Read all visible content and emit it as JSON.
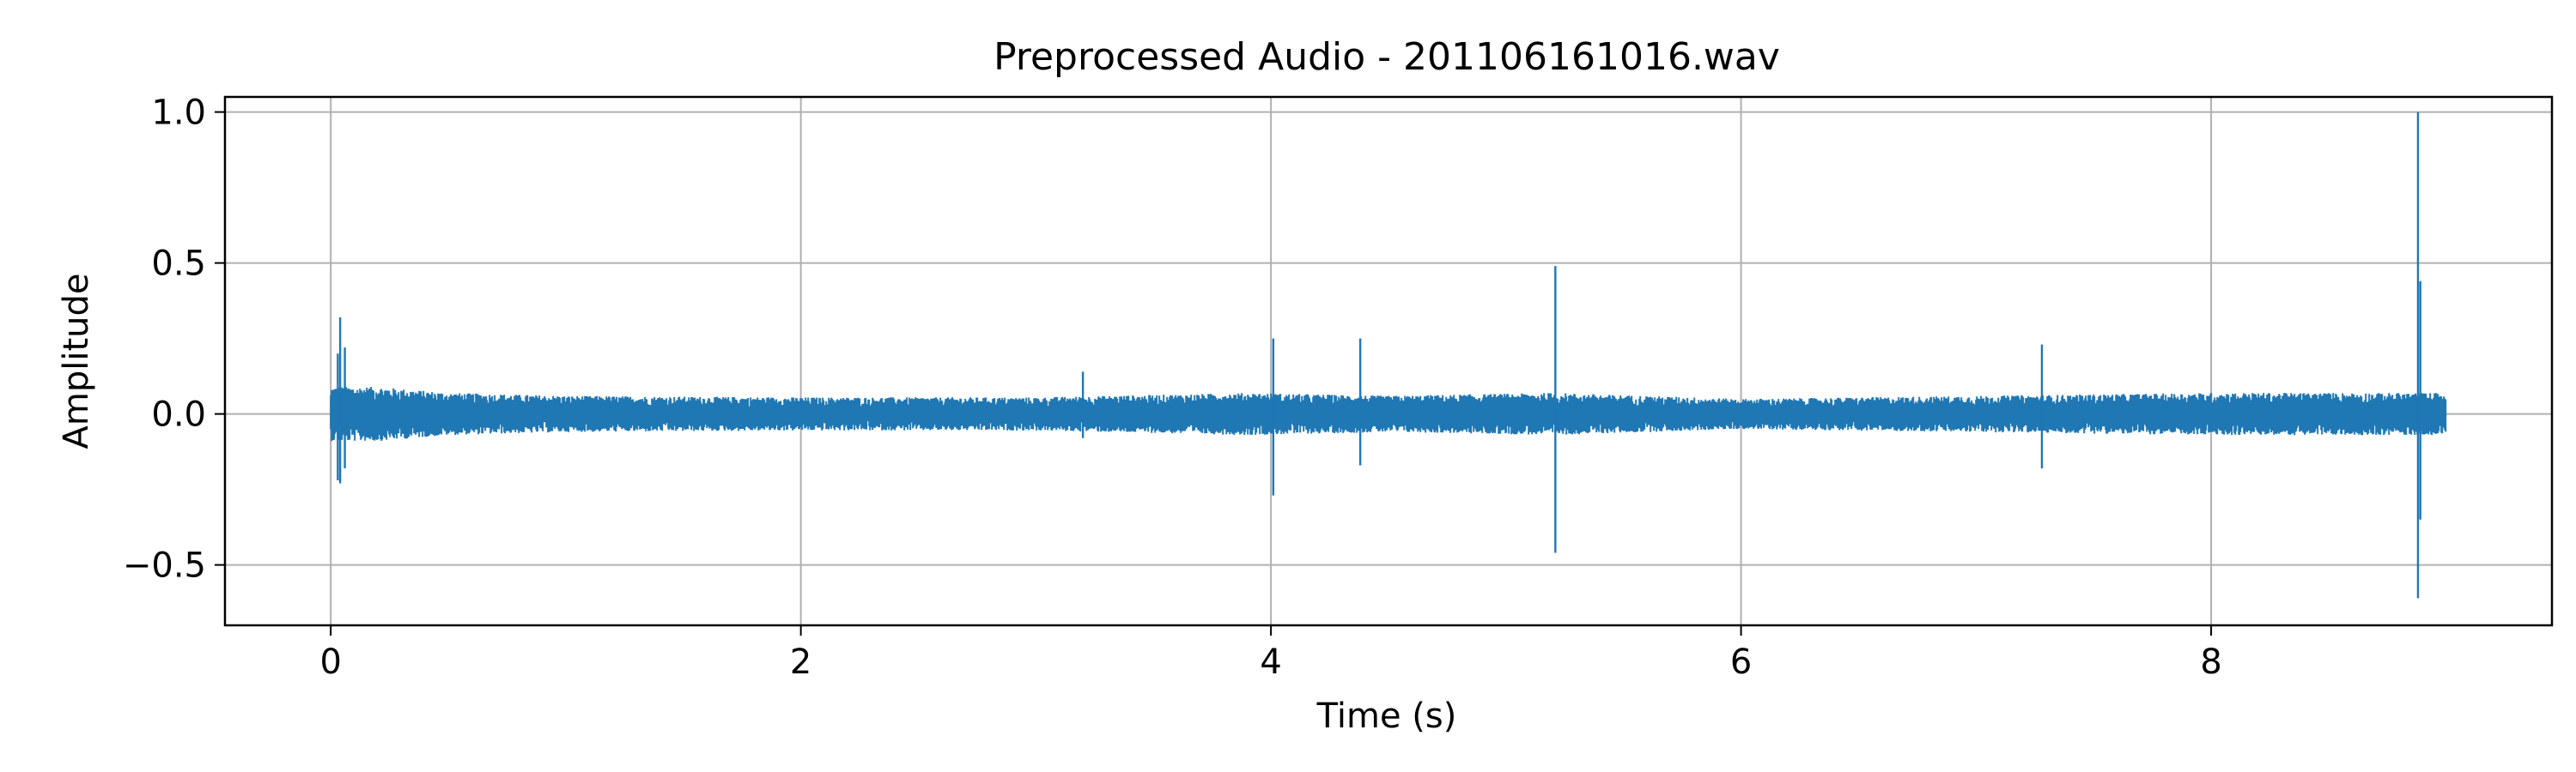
{
  "chart_data": {
    "type": "line",
    "title": "Preprocessed Audio - 201106161016.wav",
    "xlabel": "Time (s)",
    "ylabel": "Amplitude",
    "xlim": [
      -0.45,
      9.45
    ],
    "ylim": [
      -0.7,
      1.05
    ],
    "grid": true,
    "duration": 9.0,
    "color": "#1f77b4",
    "xticks": [
      {
        "value": 0,
        "label": "0"
      },
      {
        "value": 2,
        "label": "2"
      },
      {
        "value": 4,
        "label": "4"
      },
      {
        "value": 6,
        "label": "6"
      },
      {
        "value": 8,
        "label": "8"
      }
    ],
    "yticks": [
      {
        "value": 1.0,
        "label": "1.0"
      },
      {
        "value": 0.5,
        "label": "0.5"
      },
      {
        "value": 0.0,
        "label": "0.0"
      },
      {
        "value": -0.5,
        "label": "−0.5"
      }
    ],
    "envelope": [
      {
        "t": 0.0,
        "max": 0.09,
        "min": -0.09
      },
      {
        "t": 0.2,
        "max": 0.09,
        "min": -0.09
      },
      {
        "t": 0.5,
        "max": 0.07,
        "min": -0.07
      },
      {
        "t": 1.0,
        "max": 0.06,
        "min": -0.06
      },
      {
        "t": 2.0,
        "max": 0.055,
        "min": -0.055
      },
      {
        "t": 3.0,
        "max": 0.055,
        "min": -0.055
      },
      {
        "t": 3.9,
        "max": 0.07,
        "min": -0.07
      },
      {
        "t": 4.5,
        "max": 0.06,
        "min": -0.06
      },
      {
        "t": 5.2,
        "max": 0.07,
        "min": -0.07
      },
      {
        "t": 6.0,
        "max": 0.05,
        "min": -0.05
      },
      {
        "t": 7.0,
        "max": 0.06,
        "min": -0.06
      },
      {
        "t": 8.0,
        "max": 0.07,
        "min": -0.07
      },
      {
        "t": 9.0,
        "max": 0.07,
        "min": -0.07
      }
    ],
    "peaks": [
      {
        "t": 0.03,
        "max": 0.2,
        "min": -0.22
      },
      {
        "t": 0.04,
        "max": 0.32,
        "min": -0.23
      },
      {
        "t": 0.06,
        "max": 0.22,
        "min": -0.18
      },
      {
        "t": 3.2,
        "max": 0.14,
        "min": -0.08
      },
      {
        "t": 4.01,
        "max": 0.25,
        "min": -0.27
      },
      {
        "t": 4.38,
        "max": 0.25,
        "min": -0.17
      },
      {
        "t": 5.21,
        "max": 0.49,
        "min": -0.46
      },
      {
        "t": 7.28,
        "max": 0.23,
        "min": -0.18
      },
      {
        "t": 8.88,
        "max": 1.0,
        "min": -0.61
      },
      {
        "t": 8.89,
        "max": 0.44,
        "min": -0.35
      }
    ]
  }
}
